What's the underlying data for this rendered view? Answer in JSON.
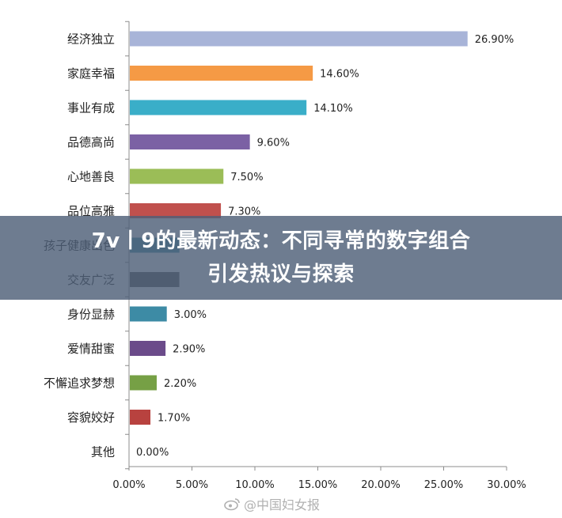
{
  "chart_data": {
    "type": "bar",
    "orientation": "horizontal",
    "categories": [
      "经济独立",
      "家庭幸福",
      "事业有成",
      "品德高尚",
      "心地善良",
      "品位高雅",
      "孩子健康出色",
      "交友广泛",
      "身份显赫",
      "爱情甜蜜",
      "不懈追求梦想",
      "容貌姣好",
      "其他"
    ],
    "values": [
      26.9,
      14.6,
      14.1,
      9.6,
      7.5,
      7.3,
      4.0,
      4.0,
      3.0,
      2.9,
      2.2,
      1.7,
      0.0
    ],
    "value_labels": [
      "26.90%",
      "14.60%",
      "14.10%",
      "9.60%",
      "7.50%",
      "7.30%",
      "",
      "",
      "3.00%",
      "2.90%",
      "2.20%",
      "1.70%",
      "0.00%"
    ],
    "colors": [
      "#a8b4d8",
      "#f59a45",
      "#3aaec8",
      "#7b61a4",
      "#9bbd57",
      "#c0504d",
      "#3f8fa8",
      "#555555",
      "#3d8ba5",
      "#6b4b8a",
      "#76a045",
      "#b8423f",
      "#cccccc"
    ],
    "xlim": [
      0,
      30
    ],
    "xticks": [
      0,
      5,
      10,
      15,
      20,
      25,
      30
    ],
    "xtick_labels": [
      "0.00%",
      "5.00%",
      "10.00%",
      "15.00%",
      "20.00%",
      "25.00%",
      "30.00%"
    ],
    "title": "",
    "xlabel": "",
    "ylabel": "",
    "grid": false,
    "legend": "none"
  },
  "overlay": {
    "headline_line1": "7v丨9的最新动态：不同寻常的数字组合",
    "headline_line2": "引发热议与探索"
  },
  "watermark": {
    "text": "@中国妇女报",
    "icon": "weibo-icon"
  }
}
